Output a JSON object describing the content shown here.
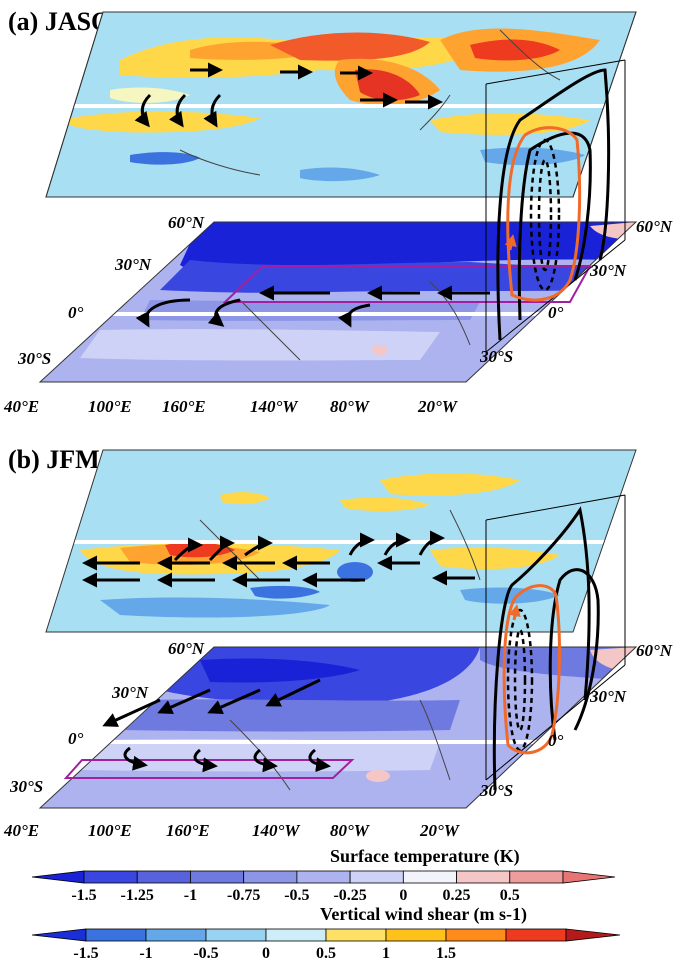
{
  "panels": [
    {
      "title": "(a) JASO",
      "lat_labels_lower": [
        "60°N",
        "30°N",
        "0°",
        "30°S"
      ],
      "lat_labels_right": [
        "60°N",
        "30°N",
        "0°",
        "30°S"
      ],
      "lon_labels": [
        "40°E",
        "100°E",
        "160°E",
        "140°W",
        "80°W",
        "20°W"
      ]
    },
    {
      "title": "(b) JFMA",
      "lat_labels_lower": [
        "60°N",
        "30°N",
        "0°",
        "30°S"
      ],
      "lat_labels_right": [
        "60°N",
        "30°N",
        "0°",
        "30°S"
      ],
      "lon_labels": [
        "40°E",
        "100°E",
        "160°E",
        "140°W",
        "80°W",
        "20°W"
      ]
    }
  ],
  "colorbars": [
    {
      "title": "Surface temperature  (K)",
      "ticks": [
        "-1.5",
        "-1.25",
        "-1",
        "-0.75",
        "-0.5",
        "-0.25",
        "0",
        "0.25",
        "0.5"
      ],
      "colors": [
        "#1a22d8",
        "#3a46e0",
        "#5762dc",
        "#6f7ae0",
        "#8c95e6",
        "#adb3ee",
        "#ced2f6",
        "#f3f3fb",
        "#f5c6c6",
        "#ef9c9c",
        "#e87474"
      ]
    },
    {
      "title": "Vertical wind shear (m s-1)",
      "ticks": [
        "-1.5",
        "-1",
        "-0.5",
        "0",
        "0.5",
        "1",
        "1.5"
      ],
      "colors": [
        "#1a2fd8",
        "#3a73e0",
        "#64a8ea",
        "#99d3f2",
        "#cdeef8",
        "#ffe066",
        "#ffc21a",
        "#ff8c1a",
        "#ee3a1e",
        "#b51a1a"
      ]
    }
  ]
}
